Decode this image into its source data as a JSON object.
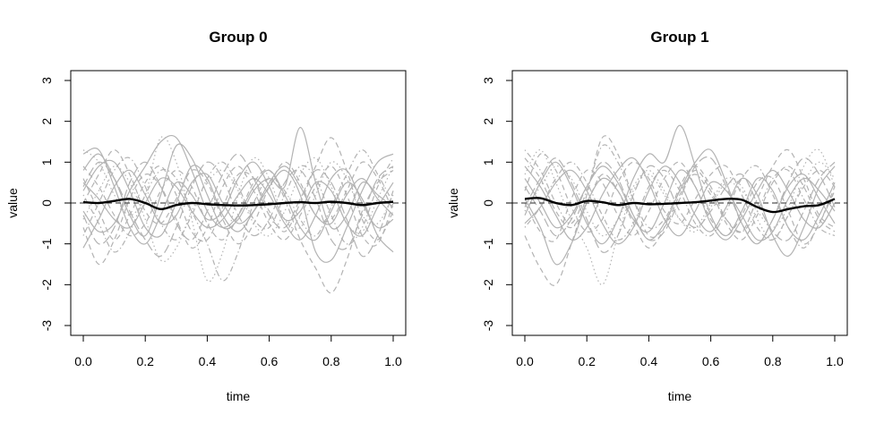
{
  "chart_data": [
    {
      "type": "line",
      "title": "Group 0",
      "xlabel": "time",
      "ylabel": "value",
      "xlim": [
        0,
        1
      ],
      "ylim": [
        -3,
        3
      ],
      "xticks": [
        0.0,
        0.2,
        0.4,
        0.6,
        0.8,
        1.0
      ],
      "xtick_labels": [
        "0.0",
        "0.2",
        "0.4",
        "0.6",
        "0.8",
        "1.0"
      ],
      "yticks": [
        -3,
        -2,
        -1,
        0,
        1,
        2,
        3
      ],
      "ytick_labels": [
        "-3",
        "-2",
        "-1",
        "0",
        "1",
        "2",
        "3"
      ],
      "reference_line": {
        "y": 0,
        "style": "dashed",
        "color": "#555555"
      },
      "mean_color": "#000000",
      "curve_color": "#b3b3b3",
      "x": [
        0.0,
        0.05,
        0.1,
        0.15,
        0.2,
        0.25,
        0.3,
        0.35,
        0.4,
        0.45,
        0.5,
        0.55,
        0.6,
        0.65,
        0.7,
        0.75,
        0.8,
        0.85,
        0.9,
        0.95,
        1.0
      ],
      "mean": [
        0.02,
        0.0,
        0.05,
        0.1,
        0.0,
        -0.15,
        -0.05,
        0.0,
        -0.03,
        -0.05,
        -0.06,
        -0.05,
        -0.03,
        0.0,
        0.02,
        0.0,
        0.03,
        0.0,
        -0.05,
        0.0,
        0.03
      ],
      "series": [
        {
          "style": "solid",
          "values": [
            0.8,
            1.2,
            0.6,
            -0.3,
            -0.8,
            0.2,
            1.4,
            1.1,
            0.2,
            -0.6,
            -0.4,
            0.3,
            0.6,
            0.4,
            1.85,
            0.5,
            -0.6,
            -0.3,
            0.5,
            0.2,
            -0.1
          ]
        },
        {
          "style": "solid",
          "values": [
            -1.1,
            -0.4,
            0.4,
            0.8,
            0.2,
            -0.5,
            -0.3,
            0.5,
            0.7,
            0.0,
            -0.5,
            -0.2,
            0.4,
            0.8,
            0.2,
            -1.2,
            -1.4,
            -0.6,
            0.3,
            1.0,
            1.2
          ]
        },
        {
          "style": "solid",
          "values": [
            0.3,
            0.9,
            1.0,
            0.3,
            -0.6,
            -0.8,
            0.0,
            0.9,
            0.6,
            -0.3,
            -0.7,
            -0.2,
            0.5,
            0.9,
            0.4,
            -0.3,
            -0.5,
            0.2,
            0.6,
            0.1,
            -0.3
          ]
        },
        {
          "style": "solid",
          "values": [
            -0.2,
            -0.7,
            -0.5,
            0.3,
            0.9,
            1.5,
            1.6,
            0.8,
            -0.2,
            -0.6,
            -0.3,
            0.4,
            0.8,
            0.2,
            -0.6,
            -0.9,
            -0.2,
            0.5,
            0.1,
            -0.8,
            -1.2
          ]
        },
        {
          "style": "solid",
          "values": [
            0.5,
            0.1,
            -0.4,
            -0.6,
            0.0,
            0.6,
            0.4,
            -0.2,
            -0.6,
            -0.4,
            0.2,
            0.6,
            0.2,
            -0.5,
            -0.9,
            -0.3,
            0.6,
            0.8,
            0.0,
            -0.6,
            -0.4
          ]
        },
        {
          "style": "solid",
          "values": [
            1.2,
            1.3,
            0.4,
            -0.6,
            -1.0,
            -0.3,
            0.5,
            0.2,
            -0.4,
            -0.2,
            0.6,
            1.0,
            0.4,
            -0.4,
            -0.2,
            0.5,
            0.3,
            -0.5,
            -0.8,
            -0.1,
            0.5
          ]
        },
        {
          "style": "dashed",
          "values": [
            0.6,
            -0.2,
            -0.9,
            -0.3,
            0.5,
            0.9,
            0.2,
            -0.7,
            -0.9,
            -0.1,
            0.7,
            0.6,
            -0.2,
            -0.7,
            0.0,
            0.9,
            1.6,
            0.8,
            -0.4,
            -0.9,
            -0.2
          ]
        },
        {
          "style": "dashed",
          "values": [
            -0.6,
            -1.5,
            -0.9,
            0.1,
            0.7,
            0.4,
            -0.4,
            -1.1,
            -0.6,
            0.4,
            0.9,
            0.3,
            -0.5,
            -0.9,
            -0.3,
            0.4,
            0.9,
            0.2,
            -0.8,
            -1.0,
            0.0
          ]
        },
        {
          "style": "dashed",
          "values": [
            0.9,
            0.4,
            -0.3,
            -0.8,
            -0.5,
            0.3,
            0.8,
            0.4,
            -0.5,
            -0.9,
            -0.3,
            0.5,
            0.8,
            0.1,
            -0.9,
            -1.6,
            -2.2,
            -1.4,
            -0.2,
            0.5,
            0.8
          ]
        },
        {
          "style": "dashed",
          "values": [
            0.0,
            0.7,
            1.3,
            0.7,
            -0.2,
            -0.5,
            0.1,
            0.8,
            0.5,
            -0.4,
            -1.0,
            -0.5,
            0.4,
            1.0,
            0.5,
            -0.3,
            -0.4,
            0.3,
            1.0,
            0.6,
            -0.2
          ]
        },
        {
          "style": "dotted",
          "values": [
            1.3,
            1.0,
            0.2,
            -0.3,
            0.2,
            1.6,
            1.0,
            -0.4,
            -1.9,
            -1.2,
            0.2,
            1.1,
            0.6,
            -0.4,
            -0.6,
            0.2,
            1.0,
            0.6,
            -0.3,
            -0.5,
            0.2
          ]
        },
        {
          "style": "dotted",
          "values": [
            -0.4,
            0.3,
            0.9,
            0.5,
            -0.4,
            -1.4,
            -1.1,
            -0.2,
            0.5,
            0.8,
            0.3,
            -0.5,
            -0.8,
            -0.2,
            0.7,
            1.1,
            0.4,
            -0.5,
            -0.7,
            0.1,
            0.9
          ]
        },
        {
          "style": "dotdash",
          "values": [
            0.2,
            -0.5,
            -1.2,
            -0.7,
            0.2,
            0.8,
            0.6,
            -0.2,
            -1.0,
            -1.9,
            -1.2,
            0.0,
            0.6,
            0.3,
            -0.4,
            -0.8,
            -0.1,
            0.7,
            1.3,
            0.7,
            0.0
          ]
        },
        {
          "style": "dotdash",
          "values": [
            -0.8,
            0.0,
            0.8,
            1.1,
            0.4,
            -0.5,
            -0.9,
            -0.3,
            0.6,
            1.0,
            0.4,
            -0.4,
            -0.6,
            0.2,
            0.9,
            0.6,
            -0.3,
            -1.0,
            -0.6,
            0.4,
            1.1
          ]
        },
        {
          "style": "longdash",
          "values": [
            0.4,
            1.0,
            0.6,
            -0.2,
            -0.9,
            -1.3,
            -0.6,
            0.4,
            1.0,
            0.6,
            -0.3,
            -0.8,
            -0.4,
            0.5,
            0.8,
            0.1,
            -0.9,
            -1.1,
            -0.3,
            0.6,
            0.9
          ]
        },
        {
          "style": "longdash",
          "values": [
            -0.3,
            -1.0,
            -0.6,
            0.5,
            1.0,
            0.4,
            -0.5,
            -0.9,
            -0.2,
            0.7,
            1.2,
            0.6,
            -0.3,
            -0.6,
            0.1,
            0.8,
            0.5,
            -0.4,
            -1.3,
            -0.8,
            0.3
          ]
        }
      ]
    },
    {
      "type": "line",
      "title": "Group 1",
      "xlabel": "time",
      "ylabel": "value",
      "xlim": [
        0,
        1
      ],
      "ylim": [
        -3,
        3
      ],
      "xticks": [
        0.0,
        0.2,
        0.4,
        0.6,
        0.8,
        1.0
      ],
      "xtick_labels": [
        "0.0",
        "0.2",
        "0.4",
        "0.6",
        "0.8",
        "1.0"
      ],
      "yticks": [
        -3,
        -2,
        -1,
        0,
        1,
        2,
        3
      ],
      "ytick_labels": [
        "-3",
        "-2",
        "-1",
        "0",
        "1",
        "2",
        "3"
      ],
      "reference_line": {
        "y": 0,
        "style": "dashed",
        "color": "#555555"
      },
      "mean_color": "#000000",
      "curve_color": "#b3b3b3",
      "x": [
        0.0,
        0.05,
        0.1,
        0.15,
        0.2,
        0.25,
        0.3,
        0.35,
        0.4,
        0.45,
        0.5,
        0.55,
        0.6,
        0.65,
        0.7,
        0.75,
        0.8,
        0.85,
        0.9,
        0.95,
        1.0
      ],
      "mean": [
        0.1,
        0.12,
        0.0,
        -0.05,
        0.05,
        0.02,
        -0.05,
        0.0,
        -0.03,
        -0.02,
        0.0,
        0.02,
        0.06,
        0.1,
        0.08,
        -0.1,
        -0.22,
        -0.15,
        -0.08,
        -0.05,
        0.1
      ],
      "series": [
        {
          "style": "solid",
          "values": [
            -0.3,
            0.5,
            1.0,
            0.4,
            -0.5,
            -1.0,
            -0.4,
            0.6,
            1.2,
            1.0,
            1.9,
            0.9,
            -0.3,
            -0.8,
            -0.2,
            0.6,
            0.3,
            -0.6,
            -0.9,
            -0.3,
            0.5
          ]
        },
        {
          "style": "solid",
          "values": [
            0.6,
            0.0,
            -0.6,
            -0.3,
            0.4,
            0.9,
            0.5,
            -0.3,
            -0.9,
            -0.5,
            0.3,
            1.0,
            1.3,
            0.5,
            -0.5,
            -1.0,
            -0.4,
            0.4,
            0.7,
            0.1,
            -0.5
          ]
        },
        {
          "style": "solid",
          "values": [
            0.1,
            -0.6,
            -1.5,
            -1.0,
            0.0,
            0.6,
            0.3,
            -0.4,
            -0.7,
            0.0,
            0.8,
            0.4,
            -0.5,
            -0.9,
            -0.4,
            0.3,
            0.8,
            0.3,
            -0.4,
            -0.6,
            0.0
          ]
        },
        {
          "style": "solid",
          "values": [
            -0.5,
            -0.1,
            0.5,
            0.8,
            0.3,
            -0.5,
            -1.0,
            -0.6,
            0.3,
            0.9,
            0.5,
            -0.3,
            -0.7,
            -0.1,
            0.6,
            0.2,
            -0.8,
            -1.3,
            -0.6,
            0.4,
            0.9
          ]
        },
        {
          "style": "solid",
          "values": [
            0.9,
            0.4,
            -0.3,
            -0.9,
            -0.6,
            0.2,
            0.8,
            1.1,
            0.5,
            -0.4,
            -0.8,
            -0.2,
            0.5,
            0.3,
            -0.3,
            -0.9,
            -0.7,
            0.1,
            0.6,
            0.3,
            -0.2
          ]
        },
        {
          "style": "dashed",
          "values": [
            0.3,
            1.2,
            0.8,
            -0.1,
            -0.7,
            -0.4,
            0.5,
            1.0,
            0.6,
            -0.2,
            -0.5,
            0.1,
            0.7,
            0.9,
            0.2,
            -0.6,
            -0.9,
            -0.3,
            0.4,
            0.8,
            0.4
          ]
        },
        {
          "style": "dashed",
          "values": [
            -0.8,
            -1.6,
            -2.0,
            -1.0,
            0.2,
            1.6,
            1.2,
            0.1,
            -0.8,
            -0.6,
            0.2,
            0.8,
            0.3,
            -0.5,
            -0.9,
            -0.3,
            0.5,
            0.9,
            0.4,
            -0.4,
            -0.7
          ]
        },
        {
          "style": "dashed",
          "values": [
            1.1,
            0.6,
            -0.2,
            -0.6,
            0.0,
            0.7,
            0.3,
            -0.5,
            -1.1,
            -0.6,
            0.4,
            0.9,
            0.4,
            -0.4,
            -0.7,
            0.1,
            0.9,
            1.3,
            0.6,
            -0.3,
            -0.6
          ]
        },
        {
          "style": "dashed",
          "values": [
            0.0,
            -0.7,
            -0.9,
            0.1,
            0.8,
            0.5,
            -0.3,
            -0.8,
            -0.2,
            0.6,
            1.0,
            0.4,
            -0.4,
            -0.8,
            -0.3,
            0.5,
            0.6,
            -0.2,
            -1.0,
            -0.5,
            0.4
          ]
        },
        {
          "style": "dotted",
          "values": [
            0.7,
            1.3,
            0.5,
            -0.4,
            -1.1,
            -2.0,
            -0.8,
            0.3,
            0.7,
            0.2,
            -0.4,
            -0.6,
            0.0,
            0.6,
            0.4,
            -0.4,
            -0.9,
            -0.3,
            0.5,
            1.0,
            0.6
          ]
        },
        {
          "style": "dotted",
          "values": [
            -0.2,
            0.4,
            0.9,
            0.6,
            -0.2,
            -0.8,
            -0.4,
            0.4,
            0.8,
            0.3,
            -0.4,
            -0.7,
            -0.1,
            0.5,
            0.3,
            -0.2,
            -0.6,
            -0.1,
            0.9,
            1.3,
            0.4
          ]
        },
        {
          "style": "dotdash",
          "values": [
            1.3,
            0.8,
            0.0,
            -0.5,
            0.3,
            1.4,
            1.0,
            0.1,
            -0.6,
            -0.4,
            0.3,
            0.7,
            0.2,
            -0.4,
            -0.7,
            -0.2,
            0.6,
            0.8,
            0.1,
            -0.6,
            -0.8
          ]
        },
        {
          "style": "dotdash",
          "values": [
            -0.6,
            -0.1,
            0.6,
            1.0,
            0.5,
            -0.3,
            -0.9,
            -0.5,
            0.4,
            0.8,
            0.3,
            -0.5,
            -0.8,
            -0.2,
            0.6,
            0.9,
            0.2,
            -0.6,
            -1.1,
            -0.5,
            0.3
          ]
        },
        {
          "style": "longdash",
          "values": [
            0.4,
            -0.2,
            -0.8,
            -0.4,
            0.4,
            1.0,
            0.6,
            -0.3,
            -0.9,
            -0.7,
            0.1,
            0.9,
            1.1,
            0.4,
            -0.5,
            -1.0,
            -0.4,
            0.5,
            1.1,
            0.7,
            -0.1
          ]
        },
        {
          "style": "longdash",
          "values": [
            -0.1,
            0.6,
            1.1,
            0.5,
            -0.4,
            -1.2,
            -0.8,
            0.2,
            0.9,
            0.6,
            -0.2,
            -0.6,
            -0.2,
            0.4,
            0.7,
            0.0,
            -0.7,
            -0.9,
            -0.2,
            0.6,
            1.0
          ]
        }
      ]
    }
  ]
}
